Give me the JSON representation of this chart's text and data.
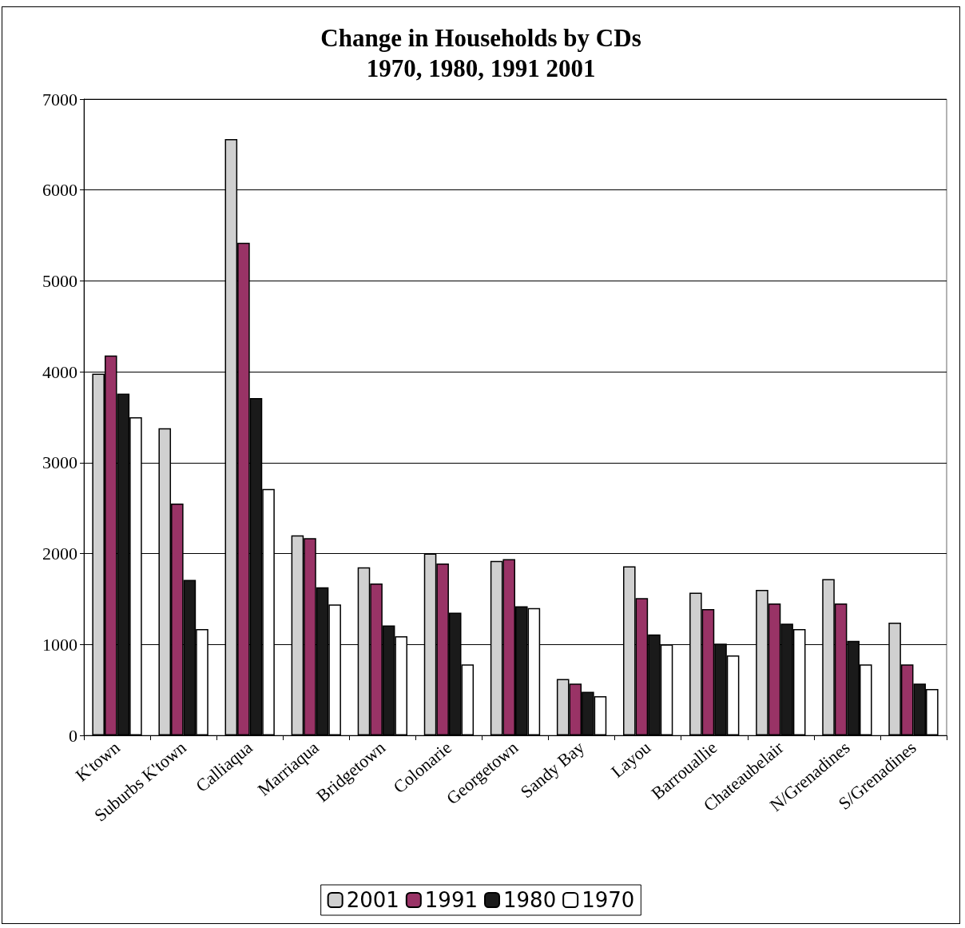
{
  "chart_data": {
    "type": "bar",
    "title": "Change in Households by CDs\n1970, 1980, 1991 2001",
    "categories": [
      "K'town",
      "Suburbs K'town",
      "Calliaqua",
      "Marriaqua",
      "Bridgetown",
      "Colonarie",
      "Georgetown",
      "Sandy Bay",
      "Layou",
      "Barrouallie",
      "Chateaubelair",
      "N/Grenadines",
      "S/Grenadines"
    ],
    "series": [
      {
        "name": "2001",
        "color": "#d0d0d0",
        "values": [
          3980,
          3380,
          6560,
          2200,
          1850,
          2000,
          1920,
          620,
          1860,
          1570,
          1600,
          1720,
          1240
        ]
      },
      {
        "name": "1991",
        "color": "#993366",
        "values": [
          4180,
          2550,
          5420,
          2170,
          1670,
          1890,
          1940,
          570,
          1510,
          1390,
          1450,
          1450,
          780
        ]
      },
      {
        "name": "1980",
        "color": "#1a1a1a",
        "values": [
          3760,
          1710,
          3710,
          1630,
          1210,
          1350,
          1420,
          480,
          1110,
          1010,
          1230,
          1040,
          570
        ]
      },
      {
        "name": "1970",
        "color": "#ffffff",
        "values": [
          3500,
          1170,
          2710,
          1440,
          1090,
          780,
          1400,
          430,
          1000,
          880,
          1170,
          780,
          510
        ]
      }
    ],
    "ylim": [
      0,
      7000
    ],
    "yticks": [
      0,
      1000,
      2000,
      3000,
      4000,
      5000,
      6000,
      7000
    ],
    "grid": "y",
    "legend": "bottom"
  }
}
